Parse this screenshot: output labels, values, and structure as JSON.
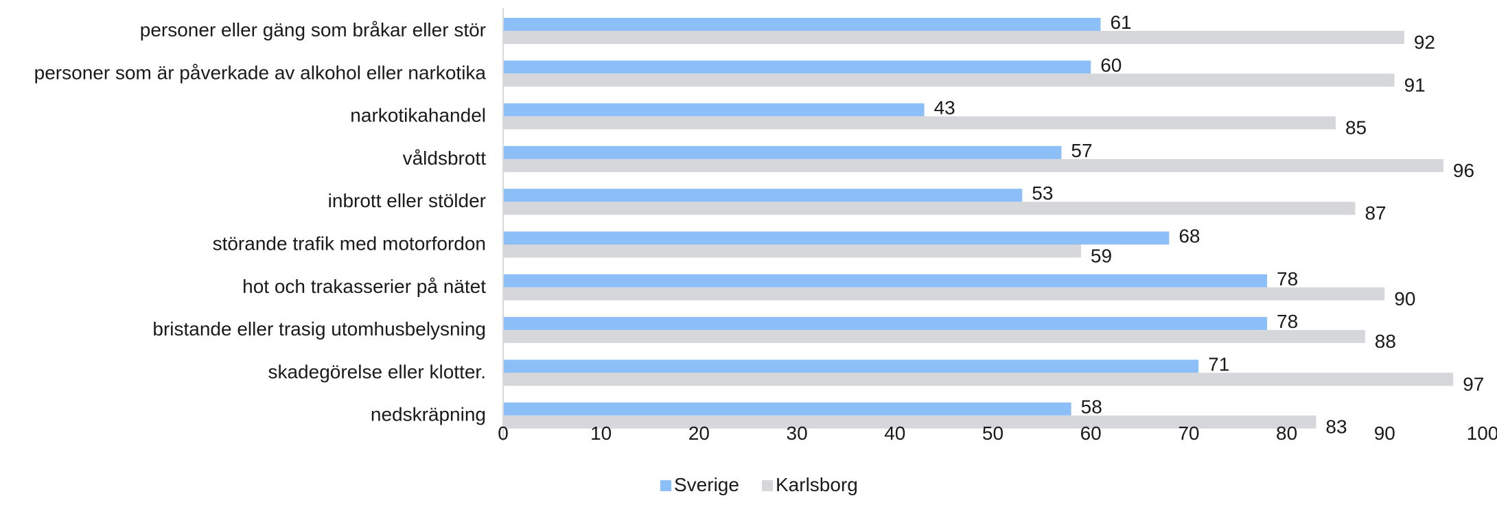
{
  "chart_data": {
    "type": "bar",
    "orientation": "horizontal",
    "title": "",
    "xlabel": "",
    "ylabel": "",
    "xlim": [
      0,
      100
    ],
    "xticks": [
      0,
      10,
      20,
      30,
      40,
      50,
      60,
      70,
      80,
      90,
      100
    ],
    "grid": false,
    "legend_position": "bottom",
    "categories": [
      "personer eller gäng som bråkar eller stör",
      "personer som är påverkade av alkohol eller narkotika",
      "narkotikahandel",
      "våldsbrott",
      "inbrott eller stölder",
      "störande trafik med motorfordon",
      "hot och trakasserier på nätet",
      "bristande eller trasig utomhusbelysning",
      "skadegörelse eller klotter.",
      "nedskräpning"
    ],
    "series": [
      {
        "name": "Sverige",
        "color": "#8cbef8",
        "values": [
          61,
          60,
          43,
          57,
          53,
          68,
          78,
          78,
          71,
          58
        ]
      },
      {
        "name": "Karlsborg",
        "color": "#d6d7da",
        "values": [
          92,
          91,
          85,
          96,
          87,
          59,
          90,
          88,
          97,
          83
        ]
      }
    ]
  }
}
